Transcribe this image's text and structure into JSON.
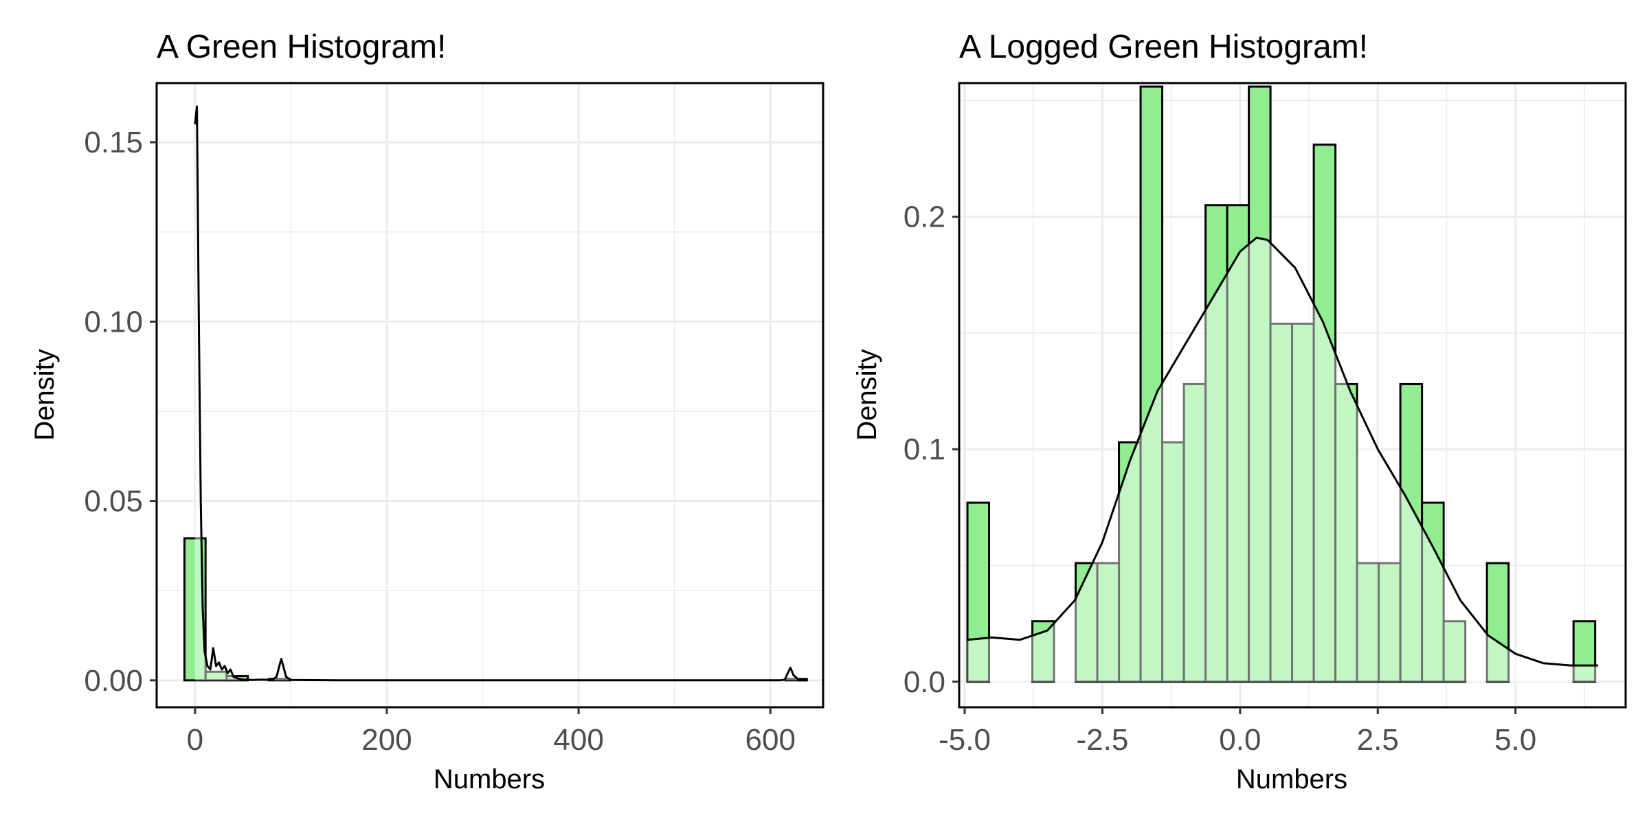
{
  "chart_data": [
    {
      "type": "histogram",
      "title": "A Green Histogram!",
      "xlabel": "Numbers",
      "ylabel": "Density",
      "xlim": [
        -40,
        655
      ],
      "ylim": [
        -0.0075,
        0.1665
      ],
      "x_ticks": [
        0,
        200,
        400,
        600
      ],
      "x_tick_labels": [
        "0",
        "200",
        "400",
        "600"
      ],
      "y_ticks": [
        0.0,
        0.05,
        0.1,
        0.15
      ],
      "y_tick_labels": [
        "0.00",
        "0.05",
        "0.10",
        "0.15"
      ],
      "grid": true,
      "bars": [
        {
          "x0": -11,
          "x1": 11,
          "value": 0.0396
        },
        {
          "x0": 11,
          "x1": 33,
          "value": 0.0024
        },
        {
          "x0": 33,
          "x1": 55,
          "value": 0.0012
        },
        {
          "x0": 77,
          "x1": 99,
          "value": 0.0004
        },
        {
          "x0": 616,
          "x1": 638,
          "value": 0.0004
        }
      ],
      "density_curve": {
        "x": [
          0,
          2,
          4,
          6,
          8,
          10,
          13,
          16,
          19,
          22,
          25,
          28,
          31,
          34,
          37,
          40,
          45,
          50,
          60,
          70,
          80,
          85,
          88,
          90,
          92,
          95,
          100,
          150,
          300,
          500,
          610,
          615,
          618,
          621,
          624,
          630,
          638
        ],
        "y": [
          0.155,
          0.16,
          0.1,
          0.05,
          0.02,
          0.008,
          0.004,
          0.003,
          0.009,
          0.004,
          0.005,
          0.003,
          0.004,
          0.002,
          0.003,
          0.001,
          0.0005,
          0.0002,
          0.0001,
          0.0002,
          0.0001,
          0.001,
          0.004,
          0.006,
          0.004,
          0.001,
          0.0001,
          0.0,
          0.0,
          0.0,
          0.0,
          0.0002,
          0.002,
          0.0035,
          0.0015,
          0.0,
          0.0
        ]
      }
    },
    {
      "type": "histogram",
      "title": "A Logged Green Histogram!",
      "xlabel": "Numbers",
      "ylabel": "Density",
      "xlim": [
        -5.1,
        7.0
      ],
      "ylim": [
        -0.011,
        0.2575
      ],
      "x_ticks": [
        -5.0,
        -2.5,
        0.0,
        2.5,
        5.0
      ],
      "x_tick_labels": [
        "-5.0",
        "-2.5",
        "0.0",
        "2.5",
        "5.0"
      ],
      "y_ticks": [
        0.0,
        0.1,
        0.2
      ],
      "y_tick_labels": [
        "0.0",
        "0.1",
        "0.2"
      ],
      "grid": true,
      "bin_start": -4.95,
      "bin_width": 0.393,
      "bar_values": [
        0.077,
        0.0,
        0.0,
        0.026,
        0.0,
        0.051,
        0.051,
        0.103,
        0.256,
        0.103,
        0.128,
        0.205,
        0.205,
        0.256,
        0.154,
        0.154,
        0.231,
        0.128,
        0.051,
        0.051,
        0.128,
        0.077,
        0.026,
        0.0,
        0.051,
        0.0,
        0.0,
        0.0,
        0.026
      ],
      "density_curve": {
        "x": [
          -4.95,
          -4.5,
          -4.0,
          -3.5,
          -3.0,
          -2.5,
          -2.0,
          -1.5,
          -1.0,
          -0.5,
          0.0,
          0.3,
          0.5,
          1.0,
          1.5,
          2.0,
          2.5,
          3.0,
          3.5,
          4.0,
          4.5,
          5.0,
          5.5,
          6.0,
          6.5
        ],
        "y": [
          0.018,
          0.019,
          0.018,
          0.022,
          0.035,
          0.06,
          0.095,
          0.125,
          0.145,
          0.165,
          0.185,
          0.191,
          0.19,
          0.178,
          0.155,
          0.125,
          0.1,
          0.08,
          0.058,
          0.035,
          0.02,
          0.012,
          0.008,
          0.007,
          0.007
        ]
      }
    }
  ],
  "colors": {
    "bar_fill": "#90EE90",
    "density_fill": "#C6F3C6",
    "outline": "#000000",
    "grid": "#EBEBEB",
    "panel_border": "#000000",
    "tick_text": "#4d4d4d"
  }
}
